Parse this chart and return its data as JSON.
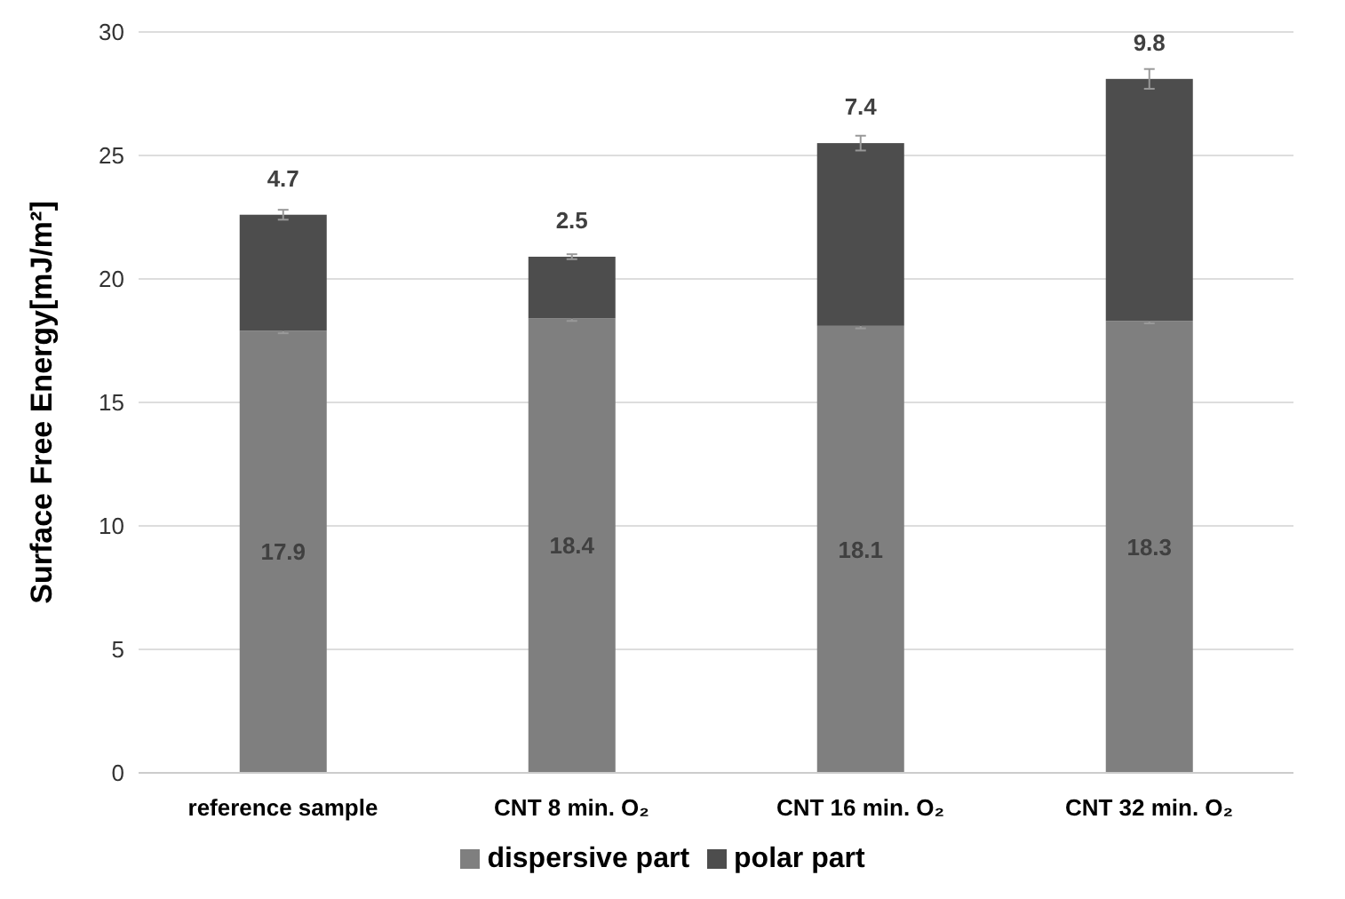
{
  "chart_data": {
    "type": "bar",
    "stacked": true,
    "ylabel": "Surface Free Energy[mJ/m²]",
    "categories": [
      "reference sample",
      "CNT 8 min. O₂",
      "CNT 16 min. O₂",
      "CNT 32 min. O₂"
    ],
    "series": [
      {
        "name": "dispersive part",
        "color": "#7f7f7f",
        "values": [
          17.9,
          18.4,
          18.1,
          18.3
        ],
        "errors": [
          0.1,
          0.1,
          0.1,
          0.1
        ]
      },
      {
        "name": "polar part",
        "color": "#4d4d4d",
        "values": [
          4.7,
          2.5,
          7.4,
          9.8
        ],
        "errors": [
          0.2,
          0.1,
          0.3,
          0.4
        ]
      }
    ],
    "ylim": [
      0,
      30
    ],
    "yticks": [
      0,
      5,
      10,
      15,
      20,
      25,
      30
    ],
    "grid": "y",
    "legend": "bottom",
    "data_labels": true
  }
}
